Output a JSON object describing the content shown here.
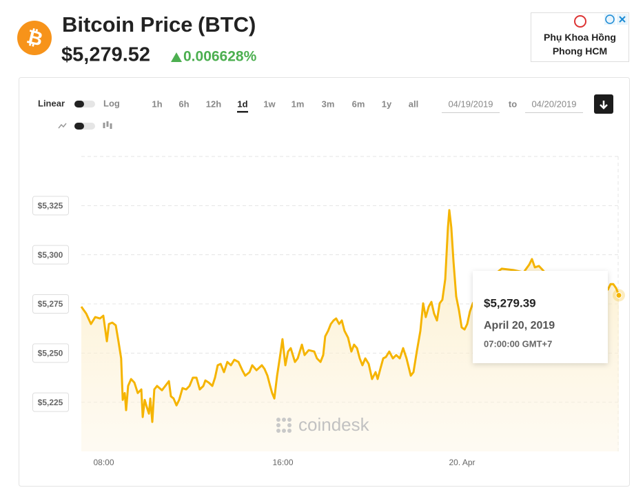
{
  "header": {
    "title": "Bitcoin Price",
    "symbol": "(BTC)",
    "price": "$5,279.52",
    "change": "0.006628%"
  },
  "ad": {
    "text": "Phụ Khoa Hồng Phong HCM"
  },
  "controls": {
    "scale_linear": "Linear",
    "scale_log": "Log",
    "ranges": [
      "1h",
      "6h",
      "12h",
      "1d",
      "1w",
      "1m",
      "3m",
      "6m",
      "1y",
      "all"
    ],
    "date_from": "04/19/2019",
    "date_sep": "to",
    "date_to": "04/20/2019"
  },
  "chart_data": {
    "type": "line",
    "x": [
      7.0,
      7.22,
      7.43,
      7.62,
      7.83,
      7.98,
      8.14,
      8.23,
      8.38,
      8.54,
      8.66,
      8.78,
      8.85,
      8.94,
      9.0,
      9.09,
      9.22,
      9.37,
      9.52,
      9.68,
      9.74,
      9.83,
      9.92,
      10.02,
      10.08,
      10.17,
      10.26,
      10.38,
      10.6,
      10.91,
      11.0,
      11.12,
      11.25,
      11.37,
      11.52,
      11.68,
      11.83,
      11.98,
      12.14,
      12.29,
      12.45,
      12.54,
      12.69,
      12.85,
      12.97,
      13.09,
      13.22,
      13.37,
      13.52,
      13.68,
      13.83,
      14.02,
      14.2,
      14.32,
      14.51,
      14.63,
      14.82,
      15.06,
      15.18,
      15.31,
      15.43,
      15.52,
      15.62,
      15.74,
      15.86,
      15.98,
      16.11,
      16.23,
      16.35,
      16.54,
      16.66,
      16.85,
      16.97,
      17.15,
      17.4,
      17.52,
      17.68,
      17.8,
      17.89,
      18.02,
      18.14,
      18.26,
      18.38,
      18.51,
      18.63,
      18.75,
      18.91,
      19.06,
      19.18,
      19.31,
      19.43,
      19.55,
      19.68,
      19.83,
      19.98,
      20.14,
      20.23,
      20.35,
      20.48,
      20.6,
      20.75,
      20.91,
      21.06,
      21.22,
      21.37,
      21.52,
      21.71,
      21.83,
      21.98,
      22.14,
      22.26,
      22.38,
      22.51,
      22.63,
      22.75,
      22.88,
      23.0,
      23.12,
      23.25,
      23.37,
      23.43,
      23.52,
      23.62,
      23.74,
      23.86,
      23.98,
      24.11,
      24.23,
      24.35,
      24.48,
      24.91,
      25.37,
      25.77,
      26.29,
      26.75,
      27.0,
      27.12,
      27.25,
      27.43,
      27.98,
      28.6,
      29.22,
      29.83,
      30.51,
      30.63,
      30.75,
      30.88,
      31.0
    ],
    "series": [
      {
        "color": "#f5b400",
        "values": [
          5273.6,
          5270.1,
          5264.8,
          5268.3,
          5267.6,
          5269.0,
          5256.0,
          5264.8,
          5265.5,
          5264.1,
          5256.0,
          5247.3,
          5226.2,
          5229.7,
          5221.0,
          5233.3,
          5236.8,
          5235.0,
          5229.7,
          5231.5,
          5217.5,
          5226.2,
          5222.7,
          5219.2,
          5226.9,
          5215.0,
          5231.5,
          5233.3,
          5231.1,
          5235.7,
          5228.0,
          5226.9,
          5223.4,
          5226.2,
          5232.2,
          5231.5,
          5233.3,
          5237.5,
          5237.5,
          5231.5,
          5233.3,
          5236.1,
          5235.0,
          5233.3,
          5237.5,
          5243.8,
          5244.5,
          5240.3,
          5245.5,
          5243.8,
          5246.6,
          5245.5,
          5241.0,
          5238.5,
          5240.3,
          5243.8,
          5241.3,
          5243.8,
          5242.0,
          5238.5,
          5233.3,
          5229.7,
          5226.9,
          5238.5,
          5247.3,
          5257.1,
          5243.8,
          5250.8,
          5252.5,
          5245.5,
          5247.3,
          5254.3,
          5249.0,
          5251.5,
          5250.8,
          5247.3,
          5245.5,
          5249.0,
          5258.5,
          5261.3,
          5264.8,
          5266.6,
          5267.6,
          5264.8,
          5266.6,
          5261.3,
          5257.8,
          5250.8,
          5254.3,
          5252.5,
          5247.3,
          5243.8,
          5247.3,
          5244.5,
          5236.8,
          5240.3,
          5236.8,
          5242.0,
          5247.3,
          5248.0,
          5250.8,
          5247.3,
          5249.0,
          5247.3,
          5252.5,
          5247.3,
          5238.5,
          5240.3,
          5250.8,
          5261.3,
          5275.3,
          5268.3,
          5273.6,
          5276.0,
          5270.1,
          5266.6,
          5275.3,
          5277.1,
          5287.6,
          5313.9,
          5322.7,
          5313.9,
          5296.4,
          5278.8,
          5271.8,
          5263.1,
          5262.0,
          5264.8,
          5271.1,
          5275.3,
          5282.3,
          5289.3,
          5292.9,
          5292.2,
          5291.1,
          5295.0,
          5297.8,
          5293.6,
          5294.3,
          5287.6,
          5285.8,
          5284.1,
          5283.0,
          5282.3,
          5285.1,
          5285.1,
          5283.0,
          5279.39
        ]
      }
    ],
    "xlim": [
      7,
      31
    ],
    "xticks": [
      {
        "value": 8,
        "label": "08:00"
      },
      {
        "value": 16,
        "label": "16:00"
      },
      {
        "value": 24,
        "label": "20. Apr"
      }
    ],
    "ylim": [
      5200,
      5350
    ],
    "yticks": [
      {
        "value": 5225,
        "label": "$5,225"
      },
      {
        "value": 5250,
        "label": "$5,250"
      },
      {
        "value": 5275,
        "label": "$5,275"
      },
      {
        "value": 5300,
        "label": "$5,300"
      },
      {
        "value": 5325,
        "label": "$5,325"
      }
    ],
    "grid": true,
    "watermark": "coindesk"
  },
  "tooltip": {
    "price": "$5,279.39",
    "date": "April 20, 2019",
    "time": "07:00:00 GMT+7"
  }
}
